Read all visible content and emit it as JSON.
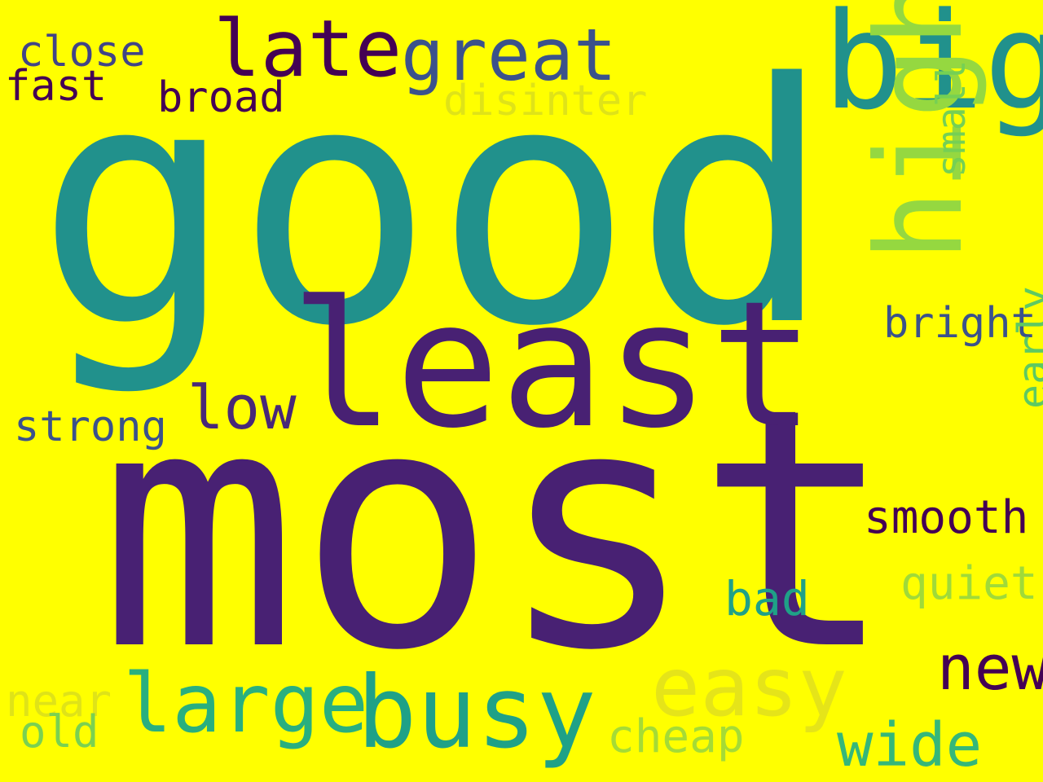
{
  "background": "#ffff00",
  "words": [
    {
      "text": "good",
      "color": "#21918c",
      "vertical": false
    },
    {
      "text": "most",
      "color": "#482173",
      "vertical": false
    },
    {
      "text": "least",
      "color": "#482173",
      "vertical": false
    },
    {
      "text": "big",
      "color": "#21918c",
      "vertical": false
    },
    {
      "text": "high",
      "color": "#95d840",
      "vertical": true
    },
    {
      "text": "late",
      "color": "#440154",
      "vertical": false
    },
    {
      "text": "great",
      "color": "#3b528b",
      "vertical": false
    },
    {
      "text": "close",
      "color": "#414487",
      "vertical": false
    },
    {
      "text": "fast",
      "color": "#440154",
      "vertical": false
    },
    {
      "text": "broad",
      "color": "#440154",
      "vertical": false
    },
    {
      "text": "disinter",
      "color": "#dfe318",
      "vertical": false
    },
    {
      "text": "small",
      "color": "#75d054",
      "vertical": true
    },
    {
      "text": "bright",
      "color": "#3b528b",
      "vertical": false
    },
    {
      "text": "early",
      "color": "#5ec962",
      "vertical": true
    },
    {
      "text": "low",
      "color": "#482878",
      "vertical": false
    },
    {
      "text": "strong",
      "color": "#3b528b",
      "vertical": false
    },
    {
      "text": "smooth",
      "color": "#440154",
      "vertical": false
    },
    {
      "text": "quiet",
      "color": "#a0da39",
      "vertical": false
    },
    {
      "text": "bad",
      "color": "#1fa187",
      "vertical": false
    },
    {
      "text": "new",
      "color": "#440154",
      "vertical": false
    },
    {
      "text": "easy",
      "color": "#e5e419",
      "vertical": false
    },
    {
      "text": "large",
      "color": "#29af7f",
      "vertical": false
    },
    {
      "text": "busy",
      "color": "#1fa187",
      "vertical": false
    },
    {
      "text": "near",
      "color": "#dfe318",
      "vertical": false
    },
    {
      "text": "old",
      "color": "#7ad151",
      "vertical": false
    },
    {
      "text": "cheap",
      "color": "#a5db36",
      "vertical": false
    },
    {
      "text": "wide",
      "color": "#35b779",
      "vertical": false
    }
  ]
}
